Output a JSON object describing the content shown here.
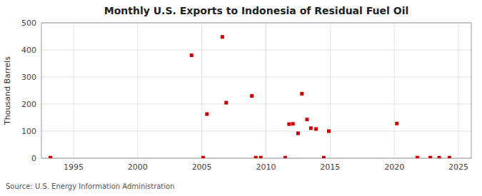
{
  "chart_data": {
    "type": "scatter",
    "title": "Monthly U.S. Exports to Indonesia of Residual Fuel Oil",
    "ylabel": "Thousand Barrels",
    "annotations": [
      "Source: U.S. Energy Information Administration"
    ],
    "color": "#cc0000",
    "marker": "square",
    "grid": true,
    "xlim": [
      1992.5,
      2026
    ],
    "ylim": [
      0,
      500
    ],
    "xticks": [
      1995,
      2000,
      2005,
      2010,
      2015,
      2020,
      2025
    ],
    "yticks": [
      0,
      100,
      200,
      300,
      400,
      500
    ],
    "x": [
      1993.2,
      2004.2,
      2005.1,
      2005.4,
      2006.6,
      2006.9,
      2008.9,
      2009.2,
      2009.6,
      2011.5,
      2011.8,
      2012.1,
      2012.5,
      2012.8,
      2013.2,
      2013.5,
      2013.9,
      2014.5,
      2014.9,
      2020.2,
      2021.8,
      2022.8,
      2023.5,
      2024.3
    ],
    "values": [
      2,
      380,
      2,
      163,
      448,
      205,
      230,
      2,
      2,
      2,
      126,
      127,
      92,
      238,
      143,
      111,
      108,
      2,
      100,
      128,
      2,
      2,
      2,
      2
    ]
  }
}
